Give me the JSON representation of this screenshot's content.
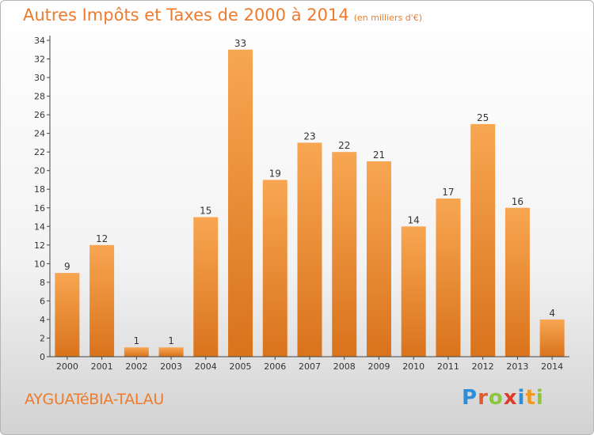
{
  "title": "Autres Impôts et Taxes de 2000 à 2014",
  "unit": "(en milliers d'€)",
  "commune": "AYGUATéBIA-TALAU",
  "brand": {
    "letters": [
      "P",
      "r",
      "o",
      "x",
      "i",
      "t",
      "i"
    ],
    "colors": [
      "#2e8ed8",
      "#e45b2a",
      "#8cc63f",
      "#e23a2a",
      "#2e8ed8",
      "#f29a1f",
      "#8cc63f"
    ]
  },
  "colors": {
    "title": "#ee7b2d",
    "bar_light": "#f8a652",
    "bar_dark": "#d9731c",
    "axis": "#444444"
  },
  "chart_data": {
    "type": "bar",
    "categories": [
      "2000",
      "2001",
      "2002",
      "2003",
      "2004",
      "2005",
      "2006",
      "2007",
      "2008",
      "2009",
      "2010",
      "2011",
      "2012",
      "2013",
      "2014"
    ],
    "values": [
      9,
      12,
      1,
      1,
      15,
      33,
      19,
      23,
      22,
      21,
      14,
      17,
      25,
      16,
      4
    ],
    "ylim": [
      0,
      34
    ],
    "yticks": [
      0,
      2,
      4,
      6,
      8,
      10,
      12,
      14,
      16,
      18,
      20,
      22,
      24,
      26,
      28,
      30,
      32,
      34
    ],
    "grid": false,
    "data_labels": true
  }
}
